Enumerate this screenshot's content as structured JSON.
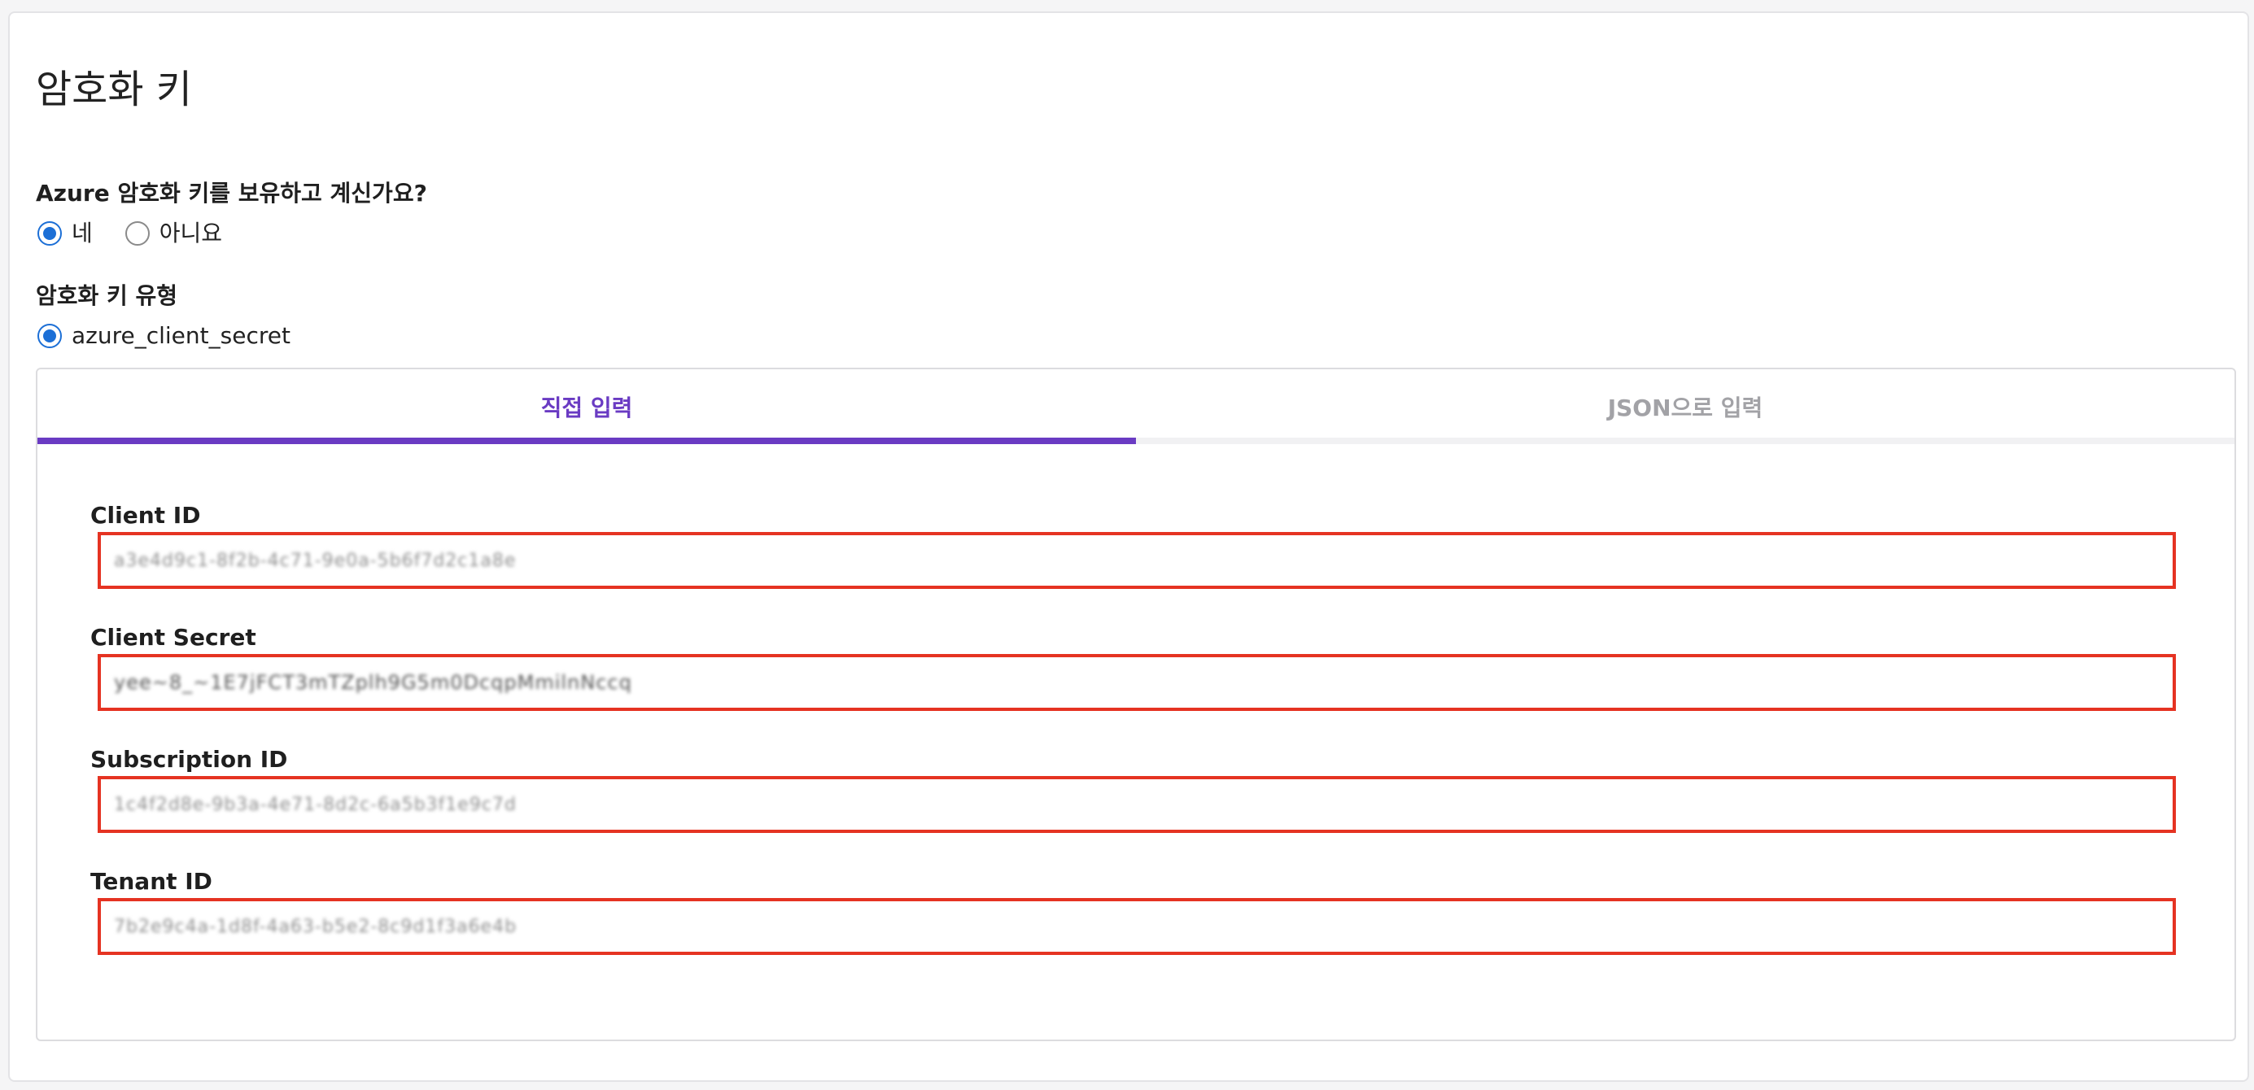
{
  "page": {
    "title": "암호화 키"
  },
  "has_key_question": {
    "label": "Azure 암호화 키를 보유하고 계신가요?",
    "options": [
      {
        "label": "네",
        "checked": true
      },
      {
        "label": "아니요",
        "checked": false
      }
    ]
  },
  "key_type": {
    "label": "암호화 키 유형",
    "options": [
      {
        "label": "azure_client_secret",
        "checked": true
      }
    ]
  },
  "tabs": [
    {
      "label": "직접 입력",
      "active": true
    },
    {
      "label": "JSON으로 입력",
      "active": false
    }
  ],
  "fields": {
    "client_id": {
      "label": "Client ID",
      "value": "a3e4d9c1-8f2b-4c71-9e0a-5b6f7d2c1a8e"
    },
    "client_secret": {
      "label": "Client Secret",
      "value": "yee~8_~1E7jFCT3mTZplh9G5m0DcqpMmilnNccq"
    },
    "subscription_id": {
      "label": "Subscription ID",
      "value": "1c4f2d8e-9b3a-4e71-8d2c-6a5b3f1e9c7d"
    },
    "tenant_id": {
      "label": "Tenant ID",
      "value": "7b2e9c4a-1d8f-4a63-b5e2-8c9d1f3a6e4b"
    }
  },
  "colors": {
    "accent_purple": "#6a3bc3",
    "radio_blue": "#1c6fd6",
    "highlight_red": "#e53322"
  }
}
